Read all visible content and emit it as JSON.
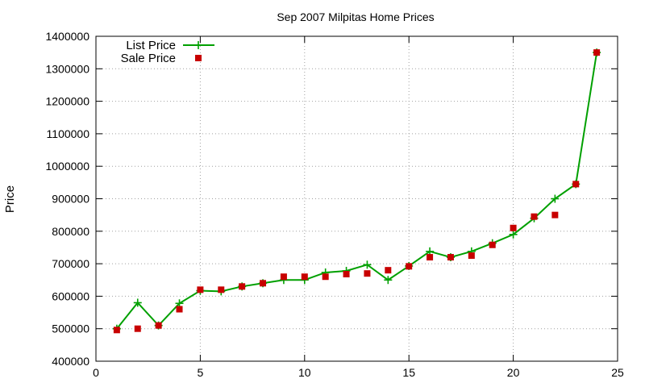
{
  "chart_data": {
    "type": "line",
    "title": "Sep 2007 Milpitas Home Prices",
    "xlabel": "",
    "ylabel": "Price",
    "xlim": [
      0,
      25
    ],
    "ylim": [
      400000,
      1400000
    ],
    "xticks": [
      0,
      5,
      10,
      15,
      20,
      25
    ],
    "yticks": [
      400000,
      500000,
      600000,
      700000,
      800000,
      900000,
      1000000,
      1100000,
      1200000,
      1300000,
      1400000
    ],
    "grid": true,
    "legend_position": "top-left",
    "series": [
      {
        "name": "List Price",
        "style": "line+cross",
        "color": "#00a000",
        "x": [
          1,
          2,
          3,
          4,
          5,
          6,
          7,
          8,
          9,
          10,
          11,
          12,
          13,
          14,
          15,
          16,
          17,
          18,
          19,
          20,
          21,
          22,
          23,
          24
        ],
        "y": [
          500000,
          580000,
          510000,
          578000,
          617000,
          615000,
          630000,
          640000,
          650000,
          650000,
          673000,
          678000,
          697000,
          650000,
          693000,
          738000,
          720000,
          738000,
          763000,
          790000,
          840000,
          900000,
          945000,
          1350000
        ]
      },
      {
        "name": "Sale Price",
        "style": "square",
        "color": "#c80000",
        "x": [
          1,
          2,
          3,
          4,
          5,
          6,
          7,
          8,
          9,
          10,
          11,
          12,
          13,
          14,
          15,
          16,
          17,
          18,
          19,
          20,
          21,
          22,
          23,
          24
        ],
        "y": [
          496000,
          500000,
          510000,
          560000,
          620000,
          620000,
          630000,
          640000,
          660000,
          660000,
          660000,
          668000,
          670000,
          680000,
          692000,
          720000,
          720000,
          725000,
          758000,
          810000,
          845000,
          850000,
          945000,
          1350000
        ]
      }
    ]
  }
}
